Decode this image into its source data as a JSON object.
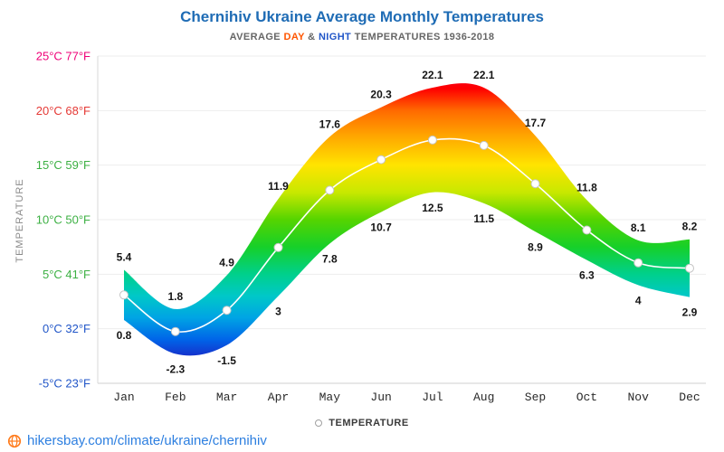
{
  "header": {
    "title": "Chernihiv Ukraine Average Monthly Temperatures",
    "subtitle_prefix": "AVERAGE ",
    "subtitle_day": "DAY",
    "subtitle_mid": " & ",
    "subtitle_night": "NIGHT",
    "subtitle_suffix": " TEMPERATURES 1936-2018"
  },
  "legend": {
    "label": "TEMPERATURE"
  },
  "footer": {
    "link": "hikersbay.com/climate/ukraine/chernihiv"
  },
  "chart_data": {
    "type": "area",
    "title": "Chernihiv Ukraine Average Monthly Temperatures",
    "subtitle": "AVERAGE DAY & NIGHT TEMPERATURES 1936-2018",
    "ylabel": "TEMPERATURE",
    "categories": [
      "Jan",
      "Feb",
      "Mar",
      "Apr",
      "May",
      "Jun",
      "Jul",
      "Aug",
      "Sep",
      "Oct",
      "Nov",
      "Dec"
    ],
    "series": [
      {
        "name": "DAY",
        "values": [
          5.4,
          1.8,
          4.9,
          11.9,
          17.6,
          20.3,
          22.1,
          22.1,
          17.7,
          11.8,
          8.1,
          8.2
        ]
      },
      {
        "name": "NIGHT",
        "values": [
          0.8,
          -2.3,
          -1.5,
          3,
          7.8,
          10.7,
          12.5,
          11.5,
          8.9,
          6.3,
          4,
          2.9
        ]
      }
    ],
    "ylim": [
      -5,
      25
    ],
    "grid": true,
    "legend_position": "bottom",
    "legend_label": "TEMPERATURE",
    "yticks": [
      {
        "t": 25,
        "celsius": "25°C",
        "fahrenheit": "77°F",
        "color": "#ef0078"
      },
      {
        "t": 20,
        "celsius": "20°C",
        "fahrenheit": "68°F",
        "color": "#e53935"
      },
      {
        "t": 15,
        "celsius": "15°C",
        "fahrenheit": "59°F",
        "color": "#3cb043"
      },
      {
        "t": 10,
        "celsius": "10°C",
        "fahrenheit": "50°F",
        "color": "#3cb043"
      },
      {
        "t": 5,
        "celsius": "5°C",
        "fahrenheit": "41°F",
        "color": "#3cb043"
      },
      {
        "t": 0,
        "celsius": "0°C",
        "fahrenheit": "32°F",
        "color": "#2156c8"
      },
      {
        "t": -5,
        "celsius": "-5°C",
        "fahrenheit": "23°F",
        "color": "#2156c8"
      }
    ],
    "band_gradient": [
      {
        "t": 25,
        "color": "#dc0050"
      },
      {
        "t": 22,
        "color": "#ff0000"
      },
      {
        "t": 20,
        "color": "#ff6a00"
      },
      {
        "t": 17.5,
        "color": "#ffaa00"
      },
      {
        "t": 15,
        "color": "#ffe400"
      },
      {
        "t": 12.5,
        "color": "#c8e800"
      },
      {
        "t": 10,
        "color": "#55d400"
      },
      {
        "t": 7.5,
        "color": "#16d029"
      },
      {
        "t": 5,
        "color": "#00d08c"
      },
      {
        "t": 3,
        "color": "#00c8c8"
      },
      {
        "t": 1,
        "color": "#00a4e4"
      },
      {
        "t": -1,
        "color": "#0064e8"
      },
      {
        "t": -2.5,
        "color": "#1531cc"
      },
      {
        "t": -5,
        "color": "#1822b4"
      }
    ],
    "marker_color": "#ffffff",
    "marker_ring_color": "#c4c4c4",
    "line_color": "#ffffff",
    "label_color": "#141414"
  }
}
